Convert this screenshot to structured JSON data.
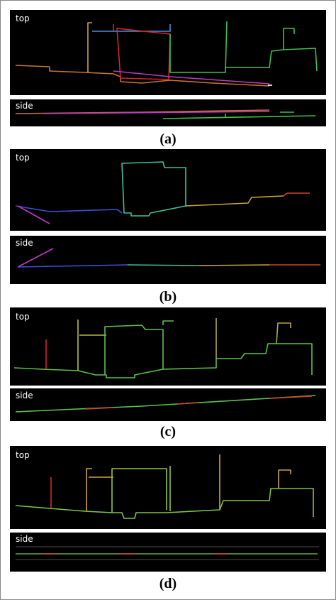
{
  "panels": [
    {
      "top_label": "top",
      "side_label": "side",
      "caption": "(a)"
    },
    {
      "top_label": "top",
      "side_label": "side",
      "caption": "(b)"
    },
    {
      "top_label": "top",
      "side_label": "side",
      "caption": "(c)"
    },
    {
      "top_label": "top",
      "side_label": "side",
      "caption": "(d)"
    }
  ]
}
